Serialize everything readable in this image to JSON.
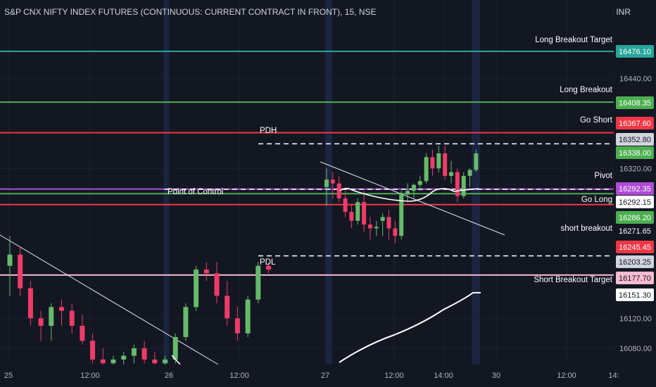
{
  "header": {
    "title": "S&P CNX NIFTY INDEX FUTURES (CONTINUOUS: CURRENT CONTRACT IN FRONT), 15, NSE",
    "currency": "INR"
  },
  "colors": {
    "background": "#131722",
    "up": "#66bb6a",
    "down": "#ef3b68",
    "green_line": "#4caf50",
    "teal_line": "#26a69a",
    "red_line": "#f23645",
    "purple_line": "#b04bd6",
    "pink_line": "#f8bbd0",
    "text": "#ffffff",
    "axis_text": "#b2b5be"
  },
  "chart_data": {
    "type": "candlestick",
    "y_axis": {
      "range": [
        16050,
        16500
      ],
      "ticks": [
        16080,
        16120,
        16320,
        16440
      ]
    },
    "x_axis": {
      "ticks": [
        "25",
        "12:00",
        "26",
        "12:00",
        "27",
        "12:00",
        "14:00",
        "30",
        "12:00",
        "14:"
      ]
    },
    "levels": [
      {
        "label": "Long Breakout Target",
        "price_label": "16476.10",
        "value": 16476.1,
        "color": "#26a69a",
        "style": "solid"
      },
      {
        "label": "Long Breakout",
        "price_label": "16408.35",
        "value": 16408.35,
        "color": "#4caf50",
        "style": "solid"
      },
      {
        "label": "Go Short",
        "price_label": "16367.60",
        "value": 16367.6,
        "color": "#f23645",
        "style": "solid"
      },
      {
        "label": "PDH",
        "price_label": "16352.80",
        "value": 16352.8,
        "color": "#ffffff",
        "style": "dashed"
      },
      {
        "label": "",
        "price_label": "16338.00",
        "value": 16338.0,
        "color": "#4caf50",
        "style": "marker"
      },
      {
        "label": "Pivot",
        "price_label": "16292.35",
        "value": 16292.35,
        "color": "#b04bd6",
        "style": "solid"
      },
      {
        "label": "Point of Control",
        "price_label": "16292.15",
        "value": 16292.15,
        "color": "#ffffff",
        "style": "dashed"
      },
      {
        "label": "Go Long",
        "price_label": "16286.20",
        "value": 16286.2,
        "color": "#4caf50",
        "style": "solid"
      },
      {
        "label": "short breakout",
        "price_label": "16271.65",
        "value": 16271.65,
        "color": "#f23645",
        "style": "solid"
      },
      {
        "label": "",
        "price_label": "16245.45",
        "value": 16245.45,
        "color": "#f23645",
        "style": "marker"
      },
      {
        "label": "PDL",
        "price_label": "16203.25",
        "value": 16203.25,
        "color": "#ffffff",
        "style": "dashed"
      },
      {
        "label": "",
        "price_label": "16177.70",
        "value": 16177.7,
        "color": "#f8bbd0",
        "style": "solid"
      },
      {
        "label": "Short  Breakout Target",
        "price_label": "16151.30",
        "value": 16151.3,
        "color": "#ffffff",
        "style": "marker"
      }
    ],
    "candles": [
      {
        "o": 16190,
        "h": 16230,
        "l": 16150,
        "c": 16205
      },
      {
        "o": 16205,
        "h": 16215,
        "l": 16150,
        "c": 16160
      },
      {
        "o": 16160,
        "h": 16170,
        "l": 16110,
        "c": 16120
      },
      {
        "o": 16120,
        "h": 16130,
        "l": 16090,
        "c": 16110
      },
      {
        "o": 16110,
        "h": 16140,
        "l": 16090,
        "c": 16135
      },
      {
        "o": 16135,
        "h": 16145,
        "l": 16110,
        "c": 16130
      },
      {
        "o": 16130,
        "h": 16140,
        "l": 16100,
        "c": 16110
      },
      {
        "o": 16110,
        "h": 16125,
        "l": 16085,
        "c": 16090
      },
      {
        "o": 16090,
        "h": 16100,
        "l": 16060,
        "c": 16065
      },
      {
        "o": 16065,
        "h": 16080,
        "l": 16055,
        "c": 16060
      },
      {
        "o": 16060,
        "h": 16070,
        "l": 16055,
        "c": 16065
      },
      {
        "o": 16065,
        "h": 16075,
        "l": 16058,
        "c": 16070
      },
      {
        "o": 16070,
        "h": 16085,
        "l": 16060,
        "c": 16080
      },
      {
        "o": 16080,
        "h": 16090,
        "l": 16060,
        "c": 16065
      },
      {
        "o": 16065,
        "h": 16075,
        "l": 16055,
        "c": 16060
      },
      {
        "o": 16060,
        "h": 16070,
        "l": 16055,
        "c": 16065
      },
      {
        "o": 16065,
        "h": 16100,
        "l": 16060,
        "c": 16095
      },
      {
        "o": 16095,
        "h": 16140,
        "l": 16090,
        "c": 16135
      },
      {
        "o": 16135,
        "h": 16190,
        "l": 16130,
        "c": 16185
      },
      {
        "o": 16185,
        "h": 16195,
        "l": 16170,
        "c": 16180
      },
      {
        "o": 16180,
        "h": 16195,
        "l": 16140,
        "c": 16150
      },
      {
        "o": 16150,
        "h": 16170,
        "l": 16110,
        "c": 16120
      },
      {
        "o": 16120,
        "h": 16135,
        "l": 16090,
        "c": 16100
      },
      {
        "o": 16100,
        "h": 16150,
        "l": 16095,
        "c": 16145
      },
      {
        "o": 16145,
        "h": 16195,
        "l": 16140,
        "c": 16190
      },
      {
        "o": 16190,
        "h": 16195,
        "l": 16180,
        "c": 16185
      },
      {
        "o": 16295,
        "h": 16320,
        "l": 16270,
        "c": 16305
      },
      {
        "o": 16305,
        "h": 16315,
        "l": 16280,
        "c": 16300
      },
      {
        "o": 16300,
        "h": 16310,
        "l": 16275,
        "c": 16280
      },
      {
        "o": 16280,
        "h": 16290,
        "l": 16255,
        "c": 16262
      },
      {
        "o": 16262,
        "h": 16272,
        "l": 16240,
        "c": 16250
      },
      {
        "o": 16250,
        "h": 16280,
        "l": 16245,
        "c": 16275
      },
      {
        "o": 16275,
        "h": 16290,
        "l": 16235,
        "c": 16245
      },
      {
        "o": 16245,
        "h": 16255,
        "l": 16225,
        "c": 16240
      },
      {
        "o": 16240,
        "h": 16250,
        "l": 16230,
        "c": 16242
      },
      {
        "o": 16250,
        "h": 16260,
        "l": 16230,
        "c": 16255
      },
      {
        "o": 16255,
        "h": 16265,
        "l": 16225,
        "c": 16240
      },
      {
        "o": 16240,
        "h": 16250,
        "l": 16220,
        "c": 16230
      },
      {
        "o": 16230,
        "h": 16290,
        "l": 16225,
        "c": 16285
      },
      {
        "o": 16285,
        "h": 16300,
        "l": 16275,
        "c": 16290
      },
      {
        "o": 16290,
        "h": 16300,
        "l": 16280,
        "c": 16298
      },
      {
        "o": 16298,
        "h": 16310,
        "l": 16290,
        "c": 16303
      },
      {
        "o": 16303,
        "h": 16340,
        "l": 16300,
        "c": 16335
      },
      {
        "o": 16335,
        "h": 16345,
        "l": 16310,
        "c": 16320
      },
      {
        "o": 16320,
        "h": 16350,
        "l": 16315,
        "c": 16340
      },
      {
        "o": 16340,
        "h": 16350,
        "l": 16305,
        "c": 16310
      },
      {
        "o": 16310,
        "h": 16330,
        "l": 16300,
        "c": 16315
      },
      {
        "o": 16315,
        "h": 16320,
        "l": 16275,
        "c": 16283
      },
      {
        "o": 16283,
        "h": 16315,
        "l": 16280,
        "c": 16310
      },
      {
        "o": 16310,
        "h": 16320,
        "l": 16295,
        "c": 16318
      },
      {
        "o": 16318,
        "h": 16345,
        "l": 16315,
        "c": 16340
      }
    ]
  }
}
